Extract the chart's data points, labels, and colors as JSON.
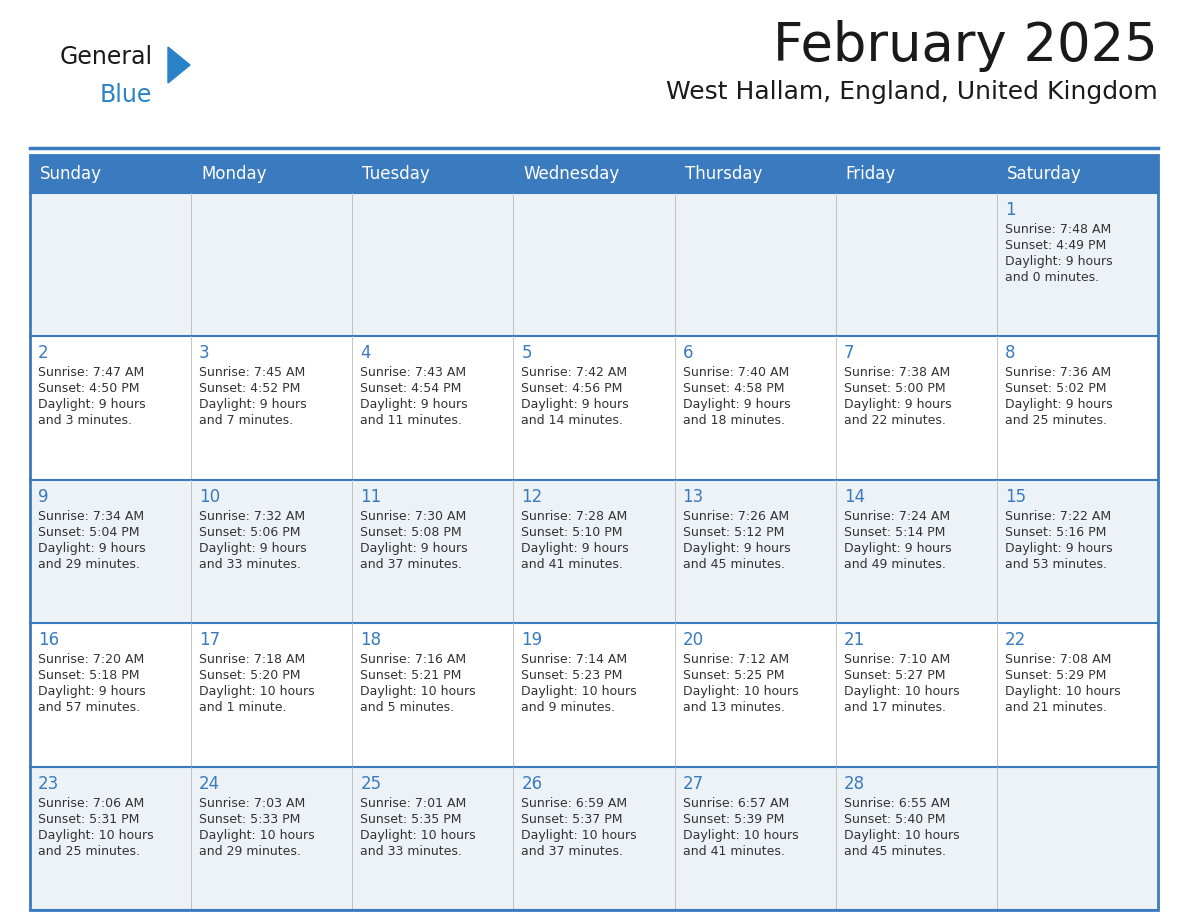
{
  "title": "February 2025",
  "subtitle": "West Hallam, England, United Kingdom",
  "days_of_week": [
    "Sunday",
    "Monday",
    "Tuesday",
    "Wednesday",
    "Thursday",
    "Friday",
    "Saturday"
  ],
  "header_bg": "#3a7abf",
  "header_text": "#ffffff",
  "cell_bg_light": "#edf2f7",
  "cell_bg_white": "#ffffff",
  "border_color": "#3a7abf",
  "title_color": "#1a1a1a",
  "subtitle_color": "#1a1a1a",
  "day_number_color": "#3a7abf",
  "cell_text_color": "#333333",
  "logo_general_color": "#1a1a1a",
  "logo_blue_color": "#2a82c8",
  "logo_triangle_color": "#2a82c8",
  "calendar_data": [
    [
      null,
      null,
      null,
      null,
      null,
      null,
      {
        "day": 1,
        "sunrise": "7:48 AM",
        "sunset": "4:49 PM",
        "daylight_line1": "Daylight: 9 hours",
        "daylight_line2": "and 0 minutes."
      }
    ],
    [
      {
        "day": 2,
        "sunrise": "7:47 AM",
        "sunset": "4:50 PM",
        "daylight_line1": "Daylight: 9 hours",
        "daylight_line2": "and 3 minutes."
      },
      {
        "day": 3,
        "sunrise": "7:45 AM",
        "sunset": "4:52 PM",
        "daylight_line1": "Daylight: 9 hours",
        "daylight_line2": "and 7 minutes."
      },
      {
        "day": 4,
        "sunrise": "7:43 AM",
        "sunset": "4:54 PM",
        "daylight_line1": "Daylight: 9 hours",
        "daylight_line2": "and 11 minutes."
      },
      {
        "day": 5,
        "sunrise": "7:42 AM",
        "sunset": "4:56 PM",
        "daylight_line1": "Daylight: 9 hours",
        "daylight_line2": "and 14 minutes."
      },
      {
        "day": 6,
        "sunrise": "7:40 AM",
        "sunset": "4:58 PM",
        "daylight_line1": "Daylight: 9 hours",
        "daylight_line2": "and 18 minutes."
      },
      {
        "day": 7,
        "sunrise": "7:38 AM",
        "sunset": "5:00 PM",
        "daylight_line1": "Daylight: 9 hours",
        "daylight_line2": "and 22 minutes."
      },
      {
        "day": 8,
        "sunrise": "7:36 AM",
        "sunset": "5:02 PM",
        "daylight_line1": "Daylight: 9 hours",
        "daylight_line2": "and 25 minutes."
      }
    ],
    [
      {
        "day": 9,
        "sunrise": "7:34 AM",
        "sunset": "5:04 PM",
        "daylight_line1": "Daylight: 9 hours",
        "daylight_line2": "and 29 minutes."
      },
      {
        "day": 10,
        "sunrise": "7:32 AM",
        "sunset": "5:06 PM",
        "daylight_line1": "Daylight: 9 hours",
        "daylight_line2": "and 33 minutes."
      },
      {
        "day": 11,
        "sunrise": "7:30 AM",
        "sunset": "5:08 PM",
        "daylight_line1": "Daylight: 9 hours",
        "daylight_line2": "and 37 minutes."
      },
      {
        "day": 12,
        "sunrise": "7:28 AM",
        "sunset": "5:10 PM",
        "daylight_line1": "Daylight: 9 hours",
        "daylight_line2": "and 41 minutes."
      },
      {
        "day": 13,
        "sunrise": "7:26 AM",
        "sunset": "5:12 PM",
        "daylight_line1": "Daylight: 9 hours",
        "daylight_line2": "and 45 minutes."
      },
      {
        "day": 14,
        "sunrise": "7:24 AM",
        "sunset": "5:14 PM",
        "daylight_line1": "Daylight: 9 hours",
        "daylight_line2": "and 49 minutes."
      },
      {
        "day": 15,
        "sunrise": "7:22 AM",
        "sunset": "5:16 PM",
        "daylight_line1": "Daylight: 9 hours",
        "daylight_line2": "and 53 minutes."
      }
    ],
    [
      {
        "day": 16,
        "sunrise": "7:20 AM",
        "sunset": "5:18 PM",
        "daylight_line1": "Daylight: 9 hours",
        "daylight_line2": "and 57 minutes."
      },
      {
        "day": 17,
        "sunrise": "7:18 AM",
        "sunset": "5:20 PM",
        "daylight_line1": "Daylight: 10 hours",
        "daylight_line2": "and 1 minute."
      },
      {
        "day": 18,
        "sunrise": "7:16 AM",
        "sunset": "5:21 PM",
        "daylight_line1": "Daylight: 10 hours",
        "daylight_line2": "and 5 minutes."
      },
      {
        "day": 19,
        "sunrise": "7:14 AM",
        "sunset": "5:23 PM",
        "daylight_line1": "Daylight: 10 hours",
        "daylight_line2": "and 9 minutes."
      },
      {
        "day": 20,
        "sunrise": "7:12 AM",
        "sunset": "5:25 PM",
        "daylight_line1": "Daylight: 10 hours",
        "daylight_line2": "and 13 minutes."
      },
      {
        "day": 21,
        "sunrise": "7:10 AM",
        "sunset": "5:27 PM",
        "daylight_line1": "Daylight: 10 hours",
        "daylight_line2": "and 17 minutes."
      },
      {
        "day": 22,
        "sunrise": "7:08 AM",
        "sunset": "5:29 PM",
        "daylight_line1": "Daylight: 10 hours",
        "daylight_line2": "and 21 minutes."
      }
    ],
    [
      {
        "day": 23,
        "sunrise": "7:06 AM",
        "sunset": "5:31 PM",
        "daylight_line1": "Daylight: 10 hours",
        "daylight_line2": "and 25 minutes."
      },
      {
        "day": 24,
        "sunrise": "7:03 AM",
        "sunset": "5:33 PM",
        "daylight_line1": "Daylight: 10 hours",
        "daylight_line2": "and 29 minutes."
      },
      {
        "day": 25,
        "sunrise": "7:01 AM",
        "sunset": "5:35 PM",
        "daylight_line1": "Daylight: 10 hours",
        "daylight_line2": "and 33 minutes."
      },
      {
        "day": 26,
        "sunrise": "6:59 AM",
        "sunset": "5:37 PM",
        "daylight_line1": "Daylight: 10 hours",
        "daylight_line2": "and 37 minutes."
      },
      {
        "day": 27,
        "sunrise": "6:57 AM",
        "sunset": "5:39 PM",
        "daylight_line1": "Daylight: 10 hours",
        "daylight_line2": "and 41 minutes."
      },
      {
        "day": 28,
        "sunrise": "6:55 AM",
        "sunset": "5:40 PM",
        "daylight_line1": "Daylight: 10 hours",
        "daylight_line2": "and 45 minutes."
      },
      null
    ]
  ]
}
